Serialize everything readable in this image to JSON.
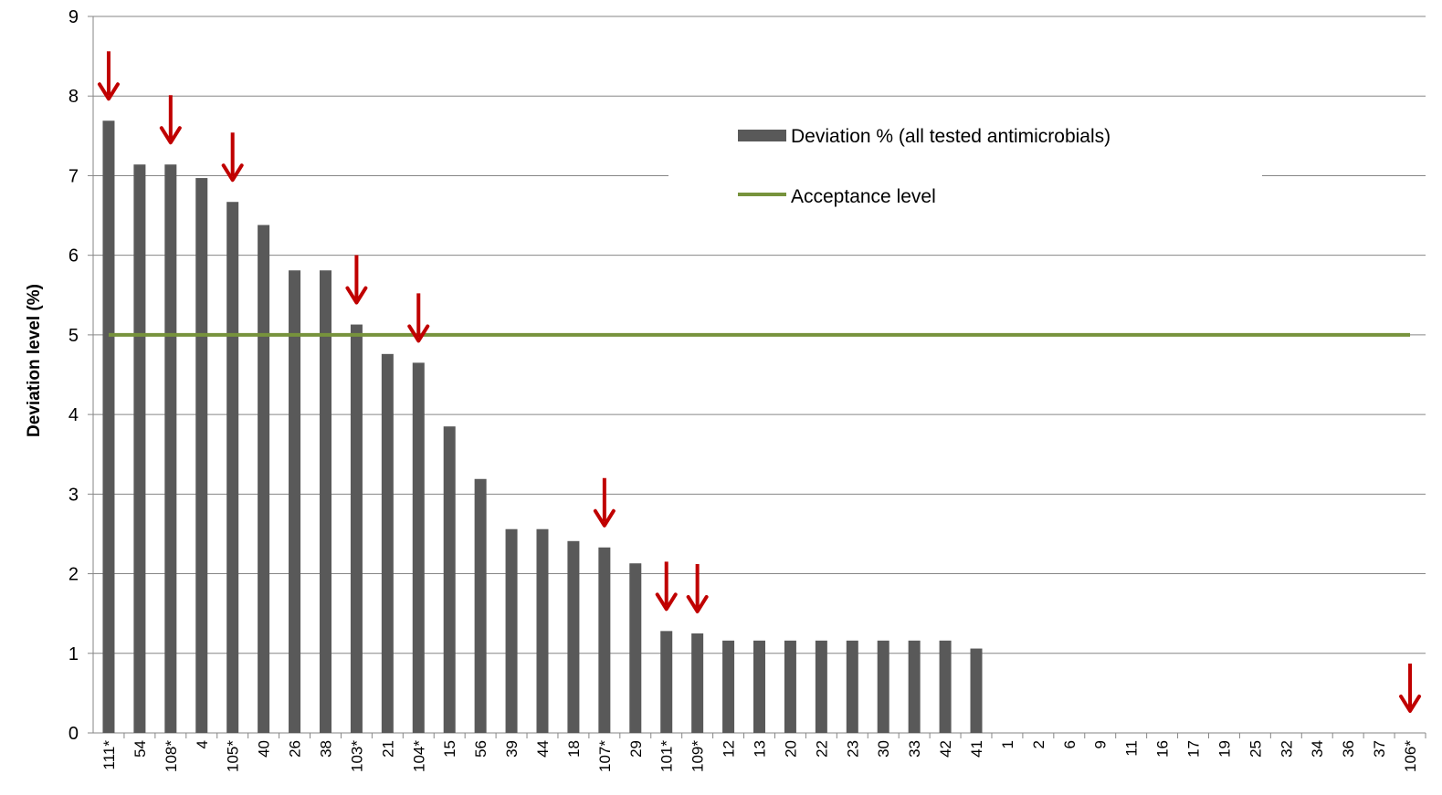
{
  "chart_data": {
    "type": "bar",
    "title": "",
    "xlabel": "",
    "ylabel": "Deviation level (%)",
    "ylim": [
      0,
      9
    ],
    "yticks": [
      0,
      1,
      2,
      3,
      4,
      5,
      6,
      7,
      8,
      9
    ],
    "grid": true,
    "legend_position": "top-center",
    "categories": [
      "111*",
      "54",
      "108*",
      "4",
      "105*",
      "40",
      "26",
      "38",
      "103*",
      "21",
      "104*",
      "15",
      "56",
      "39",
      "44",
      "18",
      "107*",
      "29",
      "101*",
      "109*",
      "12",
      "13",
      "20",
      "22",
      "23",
      "30",
      "33",
      "42",
      "41",
      "1",
      "2",
      "6",
      "9",
      "11",
      "16",
      "17",
      "19",
      "25",
      "32",
      "34",
      "36",
      "37",
      "106*"
    ],
    "series": [
      {
        "name": "Deviation % (all tested antimicrobials)",
        "kind": "bar",
        "color": "#595959",
        "values": [
          7.69,
          7.14,
          7.14,
          6.97,
          6.67,
          6.38,
          5.81,
          5.81,
          5.13,
          4.76,
          4.65,
          3.85,
          3.19,
          2.56,
          2.56,
          2.41,
          2.33,
          2.13,
          1.28,
          1.25,
          1.16,
          1.16,
          1.16,
          1.16,
          1.16,
          1.16,
          1.16,
          1.16,
          1.06,
          0,
          0,
          0,
          0,
          0,
          0,
          0,
          0,
          0,
          0,
          0,
          0,
          0,
          0
        ]
      },
      {
        "name": "Acceptance level",
        "kind": "line",
        "color": "#77933C",
        "value": 5
      }
    ],
    "markers": {
      "symbol": "down-arrow",
      "color": "#C00000",
      "categories": [
        "111*",
        "108*",
        "105*",
        "103*",
        "104*",
        "107*",
        "101*",
        "109*",
        "106*"
      ]
    }
  }
}
